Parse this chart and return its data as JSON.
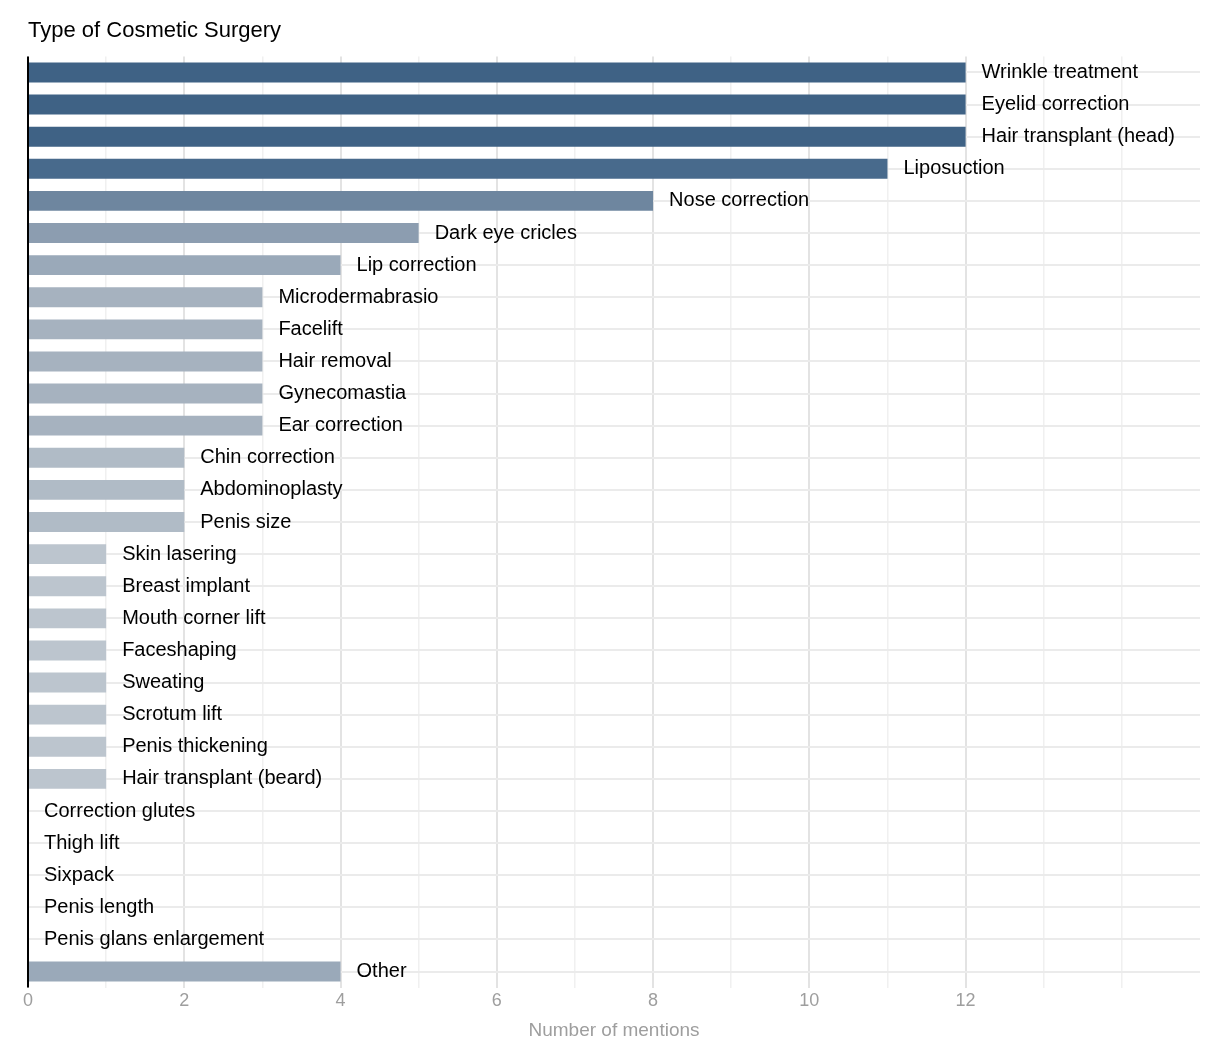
{
  "chart_data": {
    "type": "bar",
    "orientation": "horizontal",
    "title": "Type of Cosmetic Surgery",
    "xlabel": "Number of mentions",
    "categories": [
      "Wrinkle treatment",
      "Eyelid correction",
      "Hair transplant (head)",
      "Liposuction",
      "Nose correction",
      "Dark eye cricles",
      "Lip correction",
      "Microdermabrasio",
      "Facelift",
      "Hair removal",
      "Gynecomastia",
      "Ear correction",
      "Chin correction",
      "Abdominoplasty",
      "Penis size",
      "Skin lasering",
      "Breast implant",
      "Mouth corner lift",
      "Faceshaping",
      "Sweating",
      "Scrotum lift",
      "Penis thickening",
      "Hair transplant (beard)",
      "Correction glutes",
      "Thigh lift",
      "Sixpack",
      "Penis length",
      "Penis glans enlargement",
      "Other"
    ],
    "values": [
      12,
      12,
      12,
      11,
      8,
      5,
      4,
      3,
      3,
      3,
      3,
      3,
      2,
      2,
      2,
      1,
      1,
      1,
      1,
      1,
      1,
      1,
      1,
      0,
      0,
      0,
      0,
      0,
      4
    ],
    "colors": [
      "#3f6285",
      "#3f6285",
      "#3f6285",
      "#486a8c",
      "#6e869f",
      "#8c9db0",
      "#9aa9b9",
      "#a6b2bf",
      "#a6b2bf",
      "#a6b2bf",
      "#a6b2bf",
      "#a6b2bf",
      "#b0bbc6",
      "#b0bbc6",
      "#b0bbc6",
      "#bcc5ce",
      "#bcc5ce",
      "#bcc5ce",
      "#bcc5ce",
      "#bcc5ce",
      "#bcc5ce",
      "#bcc5ce",
      "#bcc5ce",
      "#bcc5ce",
      "#bcc5ce",
      "#bcc5ce",
      "#bcc5ce",
      "#bcc5ce",
      "#9aa9b9"
    ],
    "xlim": [
      0,
      15
    ],
    "xticks": [
      0,
      {
        "value": 1,
        "label": null
      },
      2,
      {
        "value": 3,
        "label": null
      },
      4,
      {
        "value": 5,
        "label": null
      },
      6,
      {
        "value": 7,
        "label": null
      },
      8,
      {
        "value": 9,
        "label": null
      },
      10,
      {
        "value": 11,
        "label": null
      },
      12,
      {
        "value": 13,
        "label": null
      },
      {
        "value": 14,
        "label": null
      }
    ],
    "grid": true,
    "legend": false
  }
}
